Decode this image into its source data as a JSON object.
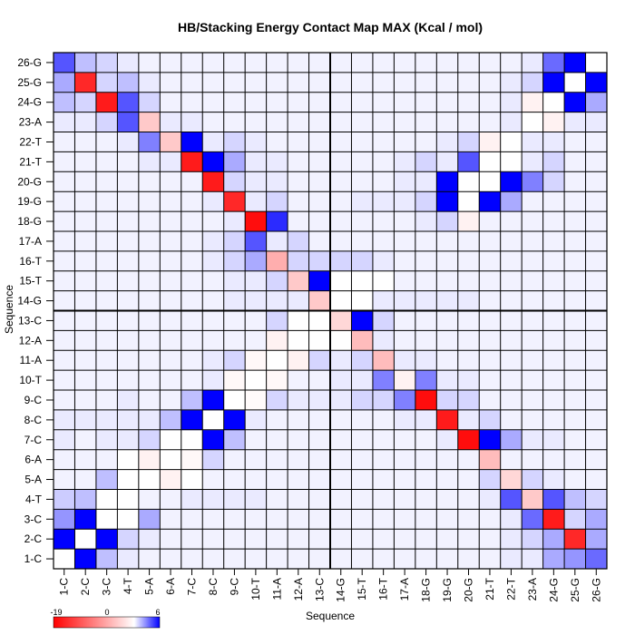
{
  "chart_data": {
    "type": "heatmap",
    "title": "HB/Stacking Energy Contact Map MAX (Kcal / mol)",
    "xlabel": "Sequence",
    "ylabel": "Sequence",
    "labels": [
      "1-C",
      "2-C",
      "3-C",
      "4-T",
      "5-A",
      "6-A",
      "7-C",
      "8-C",
      "9-C",
      "10-T",
      "11-A",
      "12-A",
      "13-C",
      "14-G",
      "15-T",
      "16-T",
      "17-A",
      "18-G",
      "19-G",
      "20-G",
      "21-T",
      "22-T",
      "23-A",
      "24-G",
      "25-G",
      "26-G"
    ],
    "divider_after": "13-C",
    "colorbar": {
      "min": -19,
      "mid": 0,
      "max": 6,
      "tick_labels": [
        "-19",
        "0",
        "6"
      ],
      "low_color": "#ff0000",
      "mid_color": "#ffffff",
      "high_color": "#0000ff"
    },
    "matrix": [
      [
        0,
        6,
        1.5,
        0.5,
        0.3,
        0.3,
        0.3,
        0.3,
        0.3,
        0.3,
        0.3,
        0.3,
        0.3,
        0.3,
        0.3,
        0.3,
        0.3,
        0.3,
        0.3,
        0.3,
        0.3,
        0.5,
        0.5,
        2,
        2.5,
        3.5
      ],
      [
        6,
        0,
        6,
        1,
        0.5,
        0.3,
        0.3,
        0.3,
        0.3,
        0.3,
        0.3,
        0.3,
        0.3,
        0.3,
        0.3,
        0.3,
        0.3,
        0.3,
        0.3,
        0.3,
        0.3,
        0.5,
        1,
        2,
        -16,
        2
      ],
      [
        2.5,
        6,
        0,
        0,
        2,
        0.3,
        0.3,
        0.3,
        0.3,
        0.3,
        0.3,
        0.3,
        0.3,
        0.3,
        0.3,
        0.3,
        0.3,
        0.3,
        0.3,
        0.3,
        0.3,
        0.5,
        3.5,
        -17,
        1,
        2
      ],
      [
        1.2,
        1.5,
        0,
        0,
        0.3,
        0.3,
        0.5,
        0.5,
        0.5,
        0.5,
        0.3,
        0.3,
        0.3,
        0.3,
        0.3,
        0.3,
        0.3,
        0.3,
        0.3,
        0.3,
        0.5,
        4,
        -4,
        4,
        1.5,
        1
      ],
      [
        0.3,
        0.3,
        1.5,
        0,
        0,
        -1,
        0,
        0.3,
        0.3,
        0.3,
        0.3,
        0.3,
        0.3,
        0.3,
        0.3,
        0.3,
        0.3,
        0.3,
        0.3,
        0.3,
        1,
        -3,
        1,
        0.5,
        0.3,
        0.3
      ],
      [
        0.3,
        0.3,
        0.3,
        0,
        -1,
        0,
        -0.5,
        1,
        0.3,
        0.3,
        0.3,
        0.3,
        0.3,
        0.3,
        0.3,
        0.3,
        0.3,
        0.3,
        0.3,
        0.3,
        -5,
        0.3,
        0.3,
        0.3,
        0.3,
        0.3
      ],
      [
        0.5,
        0.3,
        0.5,
        0.5,
        1,
        0,
        0,
        6,
        1.5,
        0.3,
        0.3,
        0.3,
        0.3,
        0.3,
        0.3,
        0.3,
        0.3,
        0.3,
        0.5,
        -18,
        6,
        2,
        0.5,
        0.5,
        0.3,
        0.3
      ],
      [
        0.5,
        0.5,
        0.5,
        0.5,
        0.5,
        1.5,
        6,
        0,
        6,
        0.5,
        0.3,
        0.3,
        0.3,
        0.3,
        0.3,
        0.3,
        0.5,
        0.5,
        -17,
        0.5,
        1,
        0.3,
        0.3,
        0.3,
        0.3,
        0.3
      ],
      [
        0.3,
        0.3,
        0.3,
        0.5,
        0.3,
        0.3,
        1.5,
        6,
        0,
        -0.3,
        1,
        0.5,
        0.5,
        0.5,
        1,
        1,
        3,
        -18,
        1,
        1,
        0.3,
        0.3,
        0.3,
        0.3,
        0.3,
        0.3
      ],
      [
        0.3,
        0.3,
        0.3,
        0.3,
        0.3,
        0.3,
        0.3,
        0.5,
        -0.5,
        0,
        -0.5,
        0.3,
        0.3,
        0.5,
        0.5,
        3,
        -1,
        3,
        0.5,
        0.5,
        0.3,
        0.3,
        0.3,
        0.3,
        0.3,
        0.3
      ],
      [
        0.3,
        0.3,
        0.3,
        0.3,
        0.3,
        0.3,
        0.3,
        0.5,
        1,
        -0.5,
        0,
        -1,
        1,
        0.5,
        1,
        -5,
        0.5,
        0.5,
        0.3,
        0.3,
        0.3,
        0.3,
        0.3,
        0.3,
        0.3,
        0.3
      ],
      [
        0.3,
        0.3,
        0.3,
        0.3,
        0.3,
        0.3,
        0.3,
        0.3,
        0.3,
        0.3,
        -1,
        0,
        0,
        0,
        -5,
        0.5,
        0.3,
        0.3,
        0.3,
        0.3,
        0.3,
        0.3,
        0.3,
        0.3,
        0.3,
        0.3
      ],
      [
        0.3,
        0.3,
        0.3,
        0.3,
        0.3,
        0.3,
        0.3,
        0.3,
        0.3,
        0.3,
        1,
        0,
        0,
        -3,
        6,
        1,
        0.3,
        0.3,
        0.3,
        0.3,
        0.3,
        0.3,
        0.3,
        0.3,
        0.3,
        0.3
      ],
      [
        0.3,
        0.3,
        0.3,
        0.3,
        0.3,
        0.3,
        0.3,
        0.3,
        0.5,
        0.5,
        0.5,
        0.5,
        -4,
        0,
        0,
        0.5,
        0.5,
        0.5,
        0.5,
        0.5,
        0.3,
        0.3,
        0.3,
        0.3,
        0.3,
        0.3
      ],
      [
        0.3,
        0.3,
        0.3,
        0.3,
        0.3,
        0.3,
        0.3,
        0.3,
        0.5,
        0.5,
        1,
        -4,
        6,
        0,
        0,
        0,
        0.3,
        0.3,
        0.3,
        0.3,
        0.3,
        0.3,
        0.3,
        0.3,
        0.3,
        0.3
      ],
      [
        0.3,
        0.3,
        0.3,
        0.3,
        0.3,
        0.3,
        0.3,
        0.5,
        1,
        2,
        -6,
        1,
        1,
        1,
        1,
        0.5,
        0.3,
        0.3,
        0.3,
        0.3,
        0.3,
        0.3,
        0.3,
        0.3,
        0.3,
        0.3
      ],
      [
        0.3,
        0.3,
        0.3,
        0.3,
        0.3,
        0.3,
        0.3,
        0.5,
        1,
        4,
        0.5,
        1,
        0.3,
        0.3,
        0.3,
        0.3,
        0.3,
        0.3,
        0.3,
        0.3,
        0.3,
        0.3,
        0.3,
        0.3,
        0.3,
        0.3
      ],
      [
        0.3,
        0.3,
        0.3,
        0.3,
        0.3,
        0.3,
        0.3,
        0.3,
        0.5,
        -18,
        5,
        0.3,
        0.3,
        0.3,
        0.3,
        0.3,
        0.3,
        0.5,
        1,
        -1,
        0.3,
        0.3,
        0.3,
        0.3,
        0.3,
        0.3
      ],
      [
        0.3,
        0.3,
        0.3,
        0.3,
        0.3,
        0.3,
        0.3,
        0.5,
        -16,
        0.5,
        1,
        0.3,
        0.3,
        0.3,
        0.5,
        0.5,
        0.5,
        1,
        6,
        0,
        6,
        2,
        0.3,
        0.3,
        0.3,
        0.3
      ],
      [
        0.3,
        0.3,
        0.3,
        0.3,
        0.3,
        0.3,
        0.3,
        -17,
        1,
        0.5,
        0.5,
        0.3,
        0.3,
        0.3,
        0.3,
        0.3,
        0.5,
        0.5,
        6,
        0,
        0,
        6,
        3,
        1,
        0.3,
        0.3
      ],
      [
        0.3,
        0.3,
        0.3,
        0.3,
        0.5,
        0.5,
        -17,
        6,
        2,
        0.5,
        0.5,
        0.3,
        0.3,
        0.3,
        0.3,
        0.3,
        0.5,
        1,
        0.5,
        4,
        0,
        0,
        0.5,
        1,
        0.3,
        0.3
      ],
      [
        0.3,
        0.3,
        0.3,
        0.5,
        3,
        -4,
        6,
        0.5,
        1,
        0.5,
        0.3,
        0.3,
        0.3,
        0.3,
        0.3,
        0.3,
        0.3,
        0.3,
        0.5,
        1,
        -1,
        0,
        0.5,
        0.5,
        0.3,
        0.3
      ],
      [
        0.5,
        0.5,
        1,
        4,
        -4,
        0.5,
        0.5,
        0.3,
        0.3,
        0.3,
        0.3,
        0.3,
        0.3,
        0.3,
        0.3,
        0.3,
        0.3,
        0.3,
        0.3,
        0.3,
        0.3,
        0.5,
        0,
        -1,
        0.5,
        0.5
      ],
      [
        1.5,
        1,
        -17,
        4,
        1,
        0.3,
        0.3,
        0.3,
        0.3,
        0.3,
        0.3,
        0.3,
        0.3,
        0.3,
        0.3,
        0.3,
        0.3,
        0.3,
        0.3,
        0.3,
        0.3,
        0.5,
        -1,
        0,
        6,
        2
      ],
      [
        2,
        -16,
        1,
        1.5,
        0.5,
        0.3,
        0.3,
        0.3,
        0.3,
        0.3,
        0.3,
        0.3,
        0.3,
        0.3,
        0.3,
        0.3,
        0.3,
        0.3,
        0.3,
        0.3,
        0.3,
        0.5,
        1,
        6,
        0,
        6
      ],
      [
        4,
        1.5,
        1,
        0.5,
        0.3,
        0.3,
        0.3,
        0.3,
        0.3,
        0.3,
        0.3,
        0.3,
        0.3,
        0.3,
        0.3,
        0.3,
        0.3,
        0.3,
        0.3,
        0.3,
        0.3,
        0.3,
        0.5,
        3.5,
        6,
        0
      ]
    ]
  }
}
